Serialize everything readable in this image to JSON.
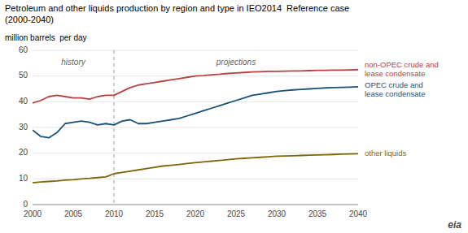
{
  "chart_data": {
    "type": "line",
    "title": "Petroleum and other liquids production by region and type in IEO2014  Reference case",
    "subtitle": "(2000-2040)",
    "y_label": "million barrels  per day",
    "x": [
      2000,
      2001,
      2002,
      2003,
      2004,
      2005,
      2006,
      2007,
      2008,
      2009,
      2010,
      2011,
      2012,
      2013,
      2014,
      2015,
      2016,
      2017,
      2018,
      2019,
      2020,
      2021,
      2022,
      2023,
      2024,
      2025,
      2026,
      2027,
      2028,
      2029,
      2030,
      2031,
      2032,
      2033,
      2034,
      2035,
      2036,
      2037,
      2038,
      2039,
      2040
    ],
    "xlim": [
      2000,
      2040
    ],
    "xticks": [
      2000,
      2005,
      2010,
      2015,
      2020,
      2025,
      2030,
      2035,
      2040
    ],
    "ylim": [
      0,
      60
    ],
    "yticks": [
      0,
      10,
      20,
      30,
      40,
      50,
      60
    ],
    "grid": true,
    "series": [
      {
        "name": "non-OPEC crude and\nlease condensate",
        "color": "#b94040",
        "values": [
          39.5,
          40.5,
          42.0,
          42.5,
          42.0,
          41.5,
          41.5,
          41.0,
          42.0,
          42.5,
          42.5,
          44.0,
          45.5,
          46.5,
          47.0,
          47.5,
          48.0,
          48.5,
          49.0,
          49.5,
          50.0,
          50.2,
          50.5,
          50.7,
          51.0,
          51.2,
          51.4,
          51.6,
          51.7,
          51.8,
          51.8,
          51.9,
          52.0,
          52.0,
          52.1,
          52.2,
          52.2,
          52.3,
          52.3,
          52.4,
          52.5
        ]
      },
      {
        "name": "OPEC crude and\nlease condensate",
        "color": "#1a5276",
        "values": [
          29.0,
          26.5,
          26.0,
          28.0,
          31.5,
          32.0,
          32.5,
          32.0,
          31.0,
          31.5,
          31.0,
          32.5,
          33.0,
          31.5,
          31.5,
          32.0,
          32.5,
          33.0,
          33.5,
          34.5,
          35.5,
          36.5,
          37.5,
          38.5,
          39.5,
          40.5,
          41.5,
          42.5,
          43.0,
          43.5,
          44.0,
          44.3,
          44.6,
          44.8,
          45.0,
          45.2,
          45.4,
          45.5,
          45.6,
          45.7,
          45.8
        ]
      },
      {
        "name": "other liquids",
        "color": "#7d6608",
        "values": [
          8.5,
          8.8,
          9.0,
          9.2,
          9.5,
          9.7,
          10.0,
          10.2,
          10.5,
          10.8,
          12.0,
          12.5,
          13.0,
          13.5,
          14.0,
          14.5,
          15.0,
          15.3,
          15.6,
          16.0,
          16.3,
          16.6,
          16.9,
          17.2,
          17.5,
          17.8,
          18.0,
          18.2,
          18.4,
          18.6,
          18.8,
          18.9,
          19.0,
          19.1,
          19.2,
          19.3,
          19.4,
          19.5,
          19.6,
          19.7,
          19.8
        ]
      }
    ],
    "vline": 2010,
    "annotations": [
      {
        "text": "history",
        "x": 2005,
        "y": 56.5
      },
      {
        "text": "projections",
        "x": 2025,
        "y": 56.5
      }
    ],
    "logo": "eia"
  }
}
